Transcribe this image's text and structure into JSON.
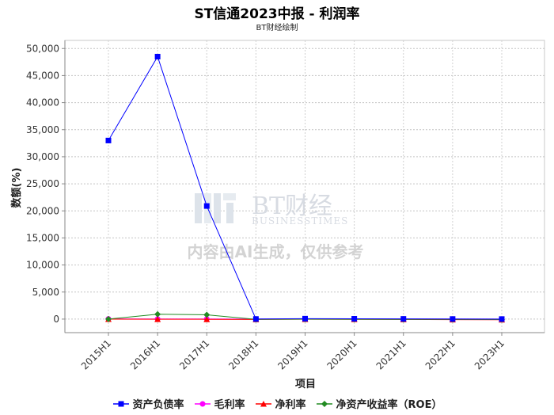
{
  "chart_data": {
    "type": "line",
    "title": "ST信通2023中报 - 利润率",
    "subtitle": "BT财经绘制",
    "xlabel": "项目",
    "ylabel": "数额(%)",
    "categories": [
      "2015H1",
      "2016H1",
      "2017H1",
      "2018H1",
      "2019H1",
      "2020H1",
      "2021H1",
      "2022H1",
      "2023H1"
    ],
    "ylim": [
      -2500,
      51500
    ],
    "yticks": [
      0,
      5000,
      10000,
      15000,
      20000,
      25000,
      30000,
      35000,
      40000,
      45000,
      50000
    ],
    "ytick_labels": [
      "0",
      "5,000",
      "10,000",
      "15,000",
      "20,000",
      "25,000",
      "30,000",
      "35,000",
      "40,000",
      "45,000",
      "50,000"
    ],
    "grid": true,
    "legend_position": "bottom",
    "series": [
      {
        "name": "资产负债率",
        "color": "#0000ff",
        "marker": "square",
        "values": [
          33000,
          48500,
          20900,
          20,
          80,
          60,
          40,
          20,
          10
        ]
      },
      {
        "name": "毛利率",
        "color": "#ff00ff",
        "marker": "circle",
        "values": [
          50,
          30,
          25,
          5,
          10,
          8,
          6,
          5,
          4
        ]
      },
      {
        "name": "净利率",
        "color": "#ff0000",
        "marker": "triangle",
        "values": [
          -20,
          -30,
          -40,
          -60,
          -30,
          -50,
          -70,
          -100,
          -120
        ]
      },
      {
        "name": "净资产收益率（ROE）",
        "color": "#228b22",
        "marker": "diamond",
        "values": [
          0,
          900,
          800,
          -40,
          -20,
          -30,
          -40,
          -50,
          -60
        ]
      }
    ]
  },
  "watermark": {
    "brand_cn": "BT财经",
    "brand_en": "BUSINESSTIMES",
    "notice": "内容由AI生成，仅供参考"
  }
}
